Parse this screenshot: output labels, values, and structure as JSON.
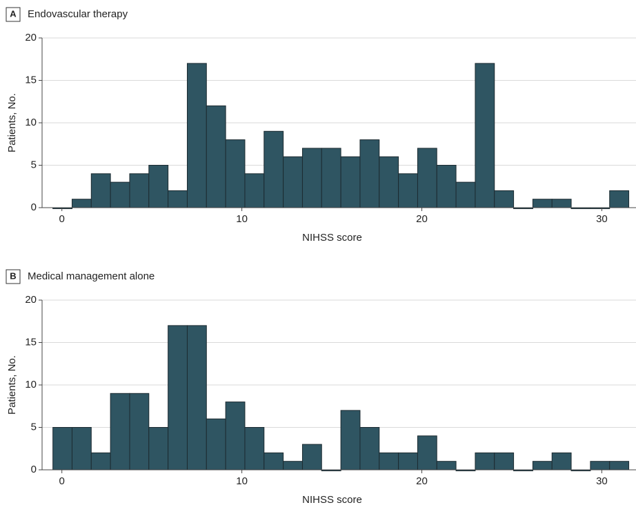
{
  "chart_data": [
    {
      "type": "histogram",
      "panel": "A",
      "title": "Endovascular therapy",
      "xlabel": "NIHSS score",
      "ylabel": "Patients, No.",
      "bins": [
        -0.5,
        0.567,
        1.633,
        2.7,
        3.767,
        4.833,
        5.9,
        6.967,
        8.033,
        9.1,
        10.167,
        11.233,
        12.3,
        13.367,
        14.433,
        15.5,
        16.567,
        17.633,
        18.7,
        19.767,
        20.833,
        21.9,
        22.967,
        24.033,
        25.1,
        26.167,
        27.233,
        28.3,
        29.367,
        30.433,
        31.5
      ],
      "values": [
        0,
        1,
        4,
        3,
        4,
        5,
        2,
        17,
        12,
        8,
        4,
        9,
        6,
        7,
        7,
        6,
        8,
        6,
        4,
        7,
        5,
        3,
        17,
        2,
        0,
        1,
        1,
        0,
        0,
        2
      ],
      "color": "#2f5562",
      "xlim": [
        -1.1,
        31.9
      ],
      "xticks": [
        0,
        10,
        20,
        30
      ],
      "ylim": [
        0,
        20
      ],
      "yticks": [
        0,
        5,
        10,
        15,
        20
      ],
      "grid": true
    },
    {
      "type": "histogram",
      "panel": "B",
      "title": "Medical management alone",
      "xlabel": "NIHSS score",
      "ylabel": "Patients, No.",
      "bins": [
        -0.5,
        0.567,
        1.633,
        2.7,
        3.767,
        4.833,
        5.9,
        6.967,
        8.033,
        9.1,
        10.167,
        11.233,
        12.3,
        13.367,
        14.433,
        15.5,
        16.567,
        17.633,
        18.7,
        19.767,
        20.833,
        21.9,
        22.967,
        24.033,
        25.1,
        26.167,
        27.233,
        28.3,
        29.367,
        30.433,
        31.5
      ],
      "values": [
        5,
        5,
        2,
        9,
        9,
        5,
        17,
        17,
        6,
        8,
        5,
        2,
        1,
        3,
        0,
        7,
        5,
        2,
        2,
        4,
        1,
        0,
        2,
        2,
        0,
        1,
        2,
        0,
        1,
        1
      ],
      "color": "#2f5562",
      "xlim": [
        -1.1,
        31.9
      ],
      "xticks": [
        0,
        10,
        20,
        30
      ],
      "ylim": [
        0,
        20
      ],
      "yticks": [
        0,
        5,
        10,
        15,
        20
      ],
      "grid": true
    }
  ]
}
